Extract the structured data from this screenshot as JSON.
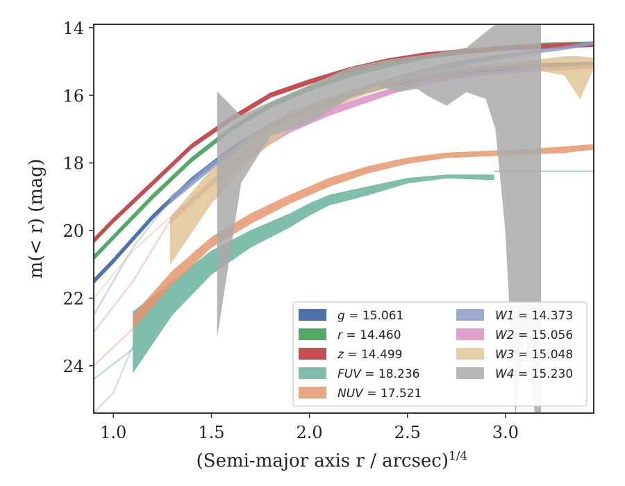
{
  "chart_data": {
    "type": "line",
    "xlabel": "(Semi-major axis r / arcsec)",
    "xlabel_exponent": "1/4",
    "ylabel": "m(< r) (mag)",
    "xlim": [
      0.9,
      3.45
    ],
    "ylim": [
      25.4,
      13.9
    ],
    "y_inverted": true,
    "grid": false,
    "legend_position": "lower-right",
    "xticks": [
      1.0,
      1.5,
      2.0,
      2.5,
      3.0
    ],
    "xtick_labels": [
      "1.0",
      "1.5",
      "2.0",
      "2.5",
      "3.0"
    ],
    "yticks": [
      14,
      16,
      18,
      20,
      22,
      24
    ],
    "ytick_labels": [
      "14",
      "16",
      "18",
      "20",
      "22",
      "24"
    ],
    "series": [
      {
        "name": "g = 15.061",
        "color": "#4c72b0",
        "width": 0.12,
        "points": [
          [
            0.9,
            21.5
          ],
          [
            1.0,
            20.9
          ],
          [
            1.2,
            19.6
          ],
          [
            1.4,
            18.5
          ],
          [
            1.6,
            17.6
          ],
          [
            1.8,
            16.9
          ],
          [
            2.0,
            16.4
          ],
          [
            2.2,
            16.0
          ],
          [
            2.4,
            15.7
          ],
          [
            2.6,
            15.45
          ],
          [
            2.8,
            15.3
          ],
          [
            3.0,
            15.2
          ],
          [
            3.2,
            15.12
          ],
          [
            3.45,
            15.08
          ]
        ]
      },
      {
        "name": "r = 14.460",
        "color": "#55a868",
        "width": 0.12,
        "points": [
          [
            0.9,
            20.8
          ],
          [
            1.0,
            20.2
          ],
          [
            1.2,
            19.0
          ],
          [
            1.4,
            17.9
          ],
          [
            1.6,
            17.0
          ],
          [
            1.8,
            16.3
          ],
          [
            2.0,
            15.8
          ],
          [
            2.2,
            15.4
          ],
          [
            2.4,
            15.1
          ],
          [
            2.6,
            14.85
          ],
          [
            2.8,
            14.7
          ],
          [
            3.0,
            14.6
          ],
          [
            3.2,
            14.52
          ],
          [
            3.45,
            14.48
          ]
        ]
      },
      {
        "name": "z = 14.499",
        "color": "#c44e52",
        "width": 0.12,
        "points": [
          [
            0.9,
            20.3
          ],
          [
            1.0,
            19.7
          ],
          [
            1.2,
            18.6
          ],
          [
            1.4,
            17.5
          ],
          [
            1.6,
            16.7
          ],
          [
            1.8,
            16.0
          ],
          [
            2.0,
            15.6
          ],
          [
            2.2,
            15.25
          ],
          [
            2.4,
            14.98
          ],
          [
            2.6,
            14.8
          ],
          [
            2.8,
            14.7
          ],
          [
            3.0,
            14.6
          ],
          [
            3.2,
            14.55
          ],
          [
            3.45,
            14.5
          ]
        ]
      },
      {
        "name": "FUV = 18.236",
        "color": "#5fae96",
        "opacity": 0.8,
        "lower": [
          [
            1.1,
            22.4
          ],
          [
            1.3,
            21.5
          ],
          [
            1.5,
            20.6
          ],
          [
            1.7,
            20.0
          ],
          [
            1.9,
            19.5
          ],
          [
            2.0,
            19.2
          ],
          [
            2.1,
            18.95
          ],
          [
            2.3,
            18.7
          ],
          [
            2.5,
            18.45
          ],
          [
            2.7,
            18.35
          ],
          [
            2.94,
            18.35
          ]
        ],
        "upper": [
          [
            1.1,
            24.2
          ],
          [
            1.3,
            22.5
          ],
          [
            1.5,
            21.3
          ],
          [
            1.7,
            20.5
          ],
          [
            1.9,
            19.9
          ],
          [
            2.0,
            19.55
          ],
          [
            2.1,
            19.25
          ],
          [
            2.3,
            18.95
          ],
          [
            2.5,
            18.6
          ],
          [
            2.7,
            18.45
          ],
          [
            2.94,
            18.5
          ]
        ],
        "faint": [
          [
            0.9,
            24.4
          ],
          [
            1.1,
            23.5
          ]
        ],
        "faint_tail": [
          [
            2.94,
            18.25
          ],
          [
            3.45,
            18.25
          ]
        ]
      },
      {
        "name": "NUV = 17.521",
        "color": "#e8966f",
        "opacity": 0.85,
        "lower": [
          [
            1.1,
            22.5
          ],
          [
            1.3,
            21.2
          ],
          [
            1.5,
            20.2
          ],
          [
            1.7,
            19.5
          ],
          [
            1.9,
            18.95
          ],
          [
            2.1,
            18.45
          ],
          [
            2.3,
            18.1
          ],
          [
            2.5,
            17.85
          ],
          [
            2.7,
            17.7
          ],
          [
            2.9,
            17.65
          ],
          [
            3.1,
            17.6
          ],
          [
            3.3,
            17.52
          ],
          [
            3.45,
            17.45
          ]
        ],
        "upper": [
          [
            1.1,
            22.9
          ],
          [
            1.3,
            21.6
          ],
          [
            1.5,
            20.5
          ],
          [
            1.7,
            19.8
          ],
          [
            1.9,
            19.2
          ],
          [
            2.1,
            18.7
          ],
          [
            2.3,
            18.3
          ],
          [
            2.5,
            18.02
          ],
          [
            2.7,
            17.85
          ],
          [
            2.9,
            17.8
          ],
          [
            3.1,
            17.75
          ],
          [
            3.3,
            17.7
          ],
          [
            3.45,
            17.6
          ]
        ],
        "faint": [
          [
            0.9,
            24.0
          ],
          [
            1.1,
            22.9
          ]
        ]
      },
      {
        "name": "W1 = 14.373",
        "color": "#8c9cc8",
        "opacity": 0.85,
        "lower": [
          [
            1.29,
            19.0
          ],
          [
            1.5,
            18.0
          ],
          [
            1.7,
            17.2
          ],
          [
            1.9,
            16.6
          ],
          [
            2.1,
            16.1
          ],
          [
            2.3,
            15.7
          ],
          [
            2.5,
            15.35
          ],
          [
            2.7,
            15.05
          ],
          [
            2.9,
            14.85
          ],
          [
            3.1,
            14.7
          ],
          [
            3.3,
            14.55
          ],
          [
            3.45,
            14.4
          ]
        ],
        "upper": [
          [
            1.29,
            19.2
          ],
          [
            1.5,
            18.2
          ],
          [
            1.7,
            17.35
          ],
          [
            1.9,
            16.75
          ],
          [
            2.1,
            16.25
          ],
          [
            2.3,
            15.85
          ],
          [
            2.5,
            15.5
          ],
          [
            2.7,
            15.2
          ],
          [
            2.9,
            15.0
          ],
          [
            3.1,
            14.8
          ],
          [
            3.3,
            14.65
          ],
          [
            3.45,
            14.5
          ]
        ],
        "faint": [
          [
            0.9,
            22.5
          ],
          [
            1.1,
            20.5
          ],
          [
            1.29,
            19.1
          ]
        ]
      },
      {
        "name": "W2 = 15.056",
        "color": "#dd8fc6",
        "opacity": 0.85,
        "lower": [
          [
            1.29,
            19.6
          ],
          [
            1.5,
            18.5
          ],
          [
            1.7,
            17.6
          ],
          [
            1.9,
            16.9
          ],
          [
            2.1,
            16.4
          ],
          [
            2.3,
            16.0
          ],
          [
            2.5,
            15.65
          ],
          [
            2.7,
            15.4
          ],
          [
            2.9,
            15.3
          ],
          [
            3.1,
            15.2
          ],
          [
            3.3,
            15.15
          ],
          [
            3.45,
            15.1
          ]
        ],
        "upper": [
          [
            1.29,
            19.8
          ],
          [
            1.5,
            18.7
          ],
          [
            1.7,
            17.8
          ],
          [
            1.9,
            17.1
          ],
          [
            2.1,
            16.6
          ],
          [
            2.3,
            16.2
          ],
          [
            2.5,
            15.8
          ],
          [
            2.7,
            15.55
          ],
          [
            2.9,
            15.4
          ],
          [
            3.1,
            15.3
          ],
          [
            3.3,
            15.25
          ],
          [
            3.45,
            15.2
          ]
        ],
        "faint": [
          [
            0.9,
            23.0
          ],
          [
            1.1,
            21.5
          ],
          [
            1.29,
            19.7
          ]
        ]
      },
      {
        "name": "W3 = 15.048",
        "color": "#dfc08f",
        "opacity": 0.8,
        "lower": [
          [
            1.29,
            19.6
          ],
          [
            1.5,
            18.2
          ],
          [
            1.7,
            17.2
          ],
          [
            1.9,
            16.5
          ],
          [
            2.1,
            16.05
          ],
          [
            2.3,
            15.7
          ],
          [
            2.5,
            15.4
          ],
          [
            2.7,
            15.2
          ],
          [
            2.9,
            15.1
          ],
          [
            3.1,
            15.0
          ],
          [
            3.3,
            14.85
          ],
          [
            3.38,
            14.85
          ],
          [
            3.45,
            14.9
          ]
        ],
        "upper": [
          [
            1.29,
            21.0
          ],
          [
            1.5,
            19.2
          ],
          [
            1.7,
            17.9
          ],
          [
            1.9,
            17.0
          ],
          [
            2.1,
            16.4
          ],
          [
            2.3,
            15.95
          ],
          [
            2.5,
            15.6
          ],
          [
            2.7,
            15.4
          ],
          [
            2.9,
            15.25
          ],
          [
            3.1,
            15.2
          ],
          [
            3.3,
            15.4
          ],
          [
            3.38,
            16.1
          ],
          [
            3.45,
            15.2
          ]
        ],
        "faint": [
          [
            0.9,
            22.0
          ],
          [
            1.1,
            20.6
          ],
          [
            1.29,
            19.6
          ]
        ]
      },
      {
        "name": "W4 = 15.230",
        "color": "#aaaaaa",
        "opacity": 0.85,
        "lower": [
          [
            1.53,
            15.9
          ],
          [
            1.65,
            16.6
          ],
          [
            1.8,
            16.2
          ],
          [
            2.0,
            15.7
          ],
          [
            2.2,
            15.2
          ],
          [
            2.4,
            14.95
          ],
          [
            2.6,
            14.8
          ],
          [
            2.8,
            14.6
          ],
          [
            2.95,
            13.9
          ],
          [
            3.18,
            13.9
          ]
        ],
        "upper": [
          [
            1.53,
            23.1
          ],
          [
            1.65,
            18.6
          ],
          [
            1.8,
            17.2
          ],
          [
            2.0,
            16.8
          ],
          [
            2.2,
            16.1
          ],
          [
            2.35,
            15.7
          ],
          [
            2.45,
            15.9
          ],
          [
            2.55,
            15.8
          ],
          [
            2.6,
            16.0
          ],
          [
            2.7,
            16.3
          ],
          [
            2.8,
            15.9
          ],
          [
            2.9,
            16.1
          ],
          [
            2.95,
            17.0
          ],
          [
            3.0,
            20.0
          ],
          [
            3.05,
            25.4
          ],
          [
            3.1,
            23.0
          ],
          [
            3.15,
            25.4
          ],
          [
            3.18,
            25.4
          ]
        ],
        "faint": [
          [
            0.9,
            25.4
          ],
          [
            1.0,
            24.8
          ],
          [
            1.1,
            23.4
          ]
        ]
      }
    ]
  }
}
